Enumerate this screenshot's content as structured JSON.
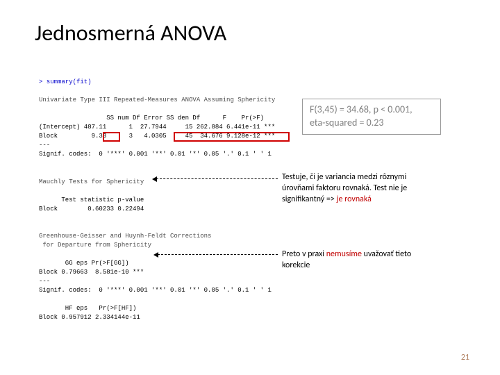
{
  "title": "Jednosmerná ANOVA",
  "code": {
    "prompt": "> summary(fit)",
    "line1": "Univariate Type III Repeated-Measures ANOVA Assuming Sphericity",
    "header1": "                  SS num Df Error SS den Df      F    Pr(>F)",
    "row_intercept": "(Intercept) 487.11      1  27.7944     15 262.884 6.441e-11 ***",
    "row_block": "Block         9.33      3   4.0305     45  34.676 9.128e-12 ***",
    "sep1": "---",
    "signif1": "Signif. codes:  0 '***' 0.001 '**' 0.01 '*' 0.05 '.' 0.1 ' ' 1",
    "mauchly_title": "Mauchly Tests for Sphericity",
    "mauchly_header": "      Test statistic p-value",
    "mauchly_row": "Block        0.60233 0.22494",
    "gg_title": "Greenhouse-Geisser and Huynh-Feldt Corrections",
    "gg_title2": " for Departure from Sphericity",
    "gg_header": "       GG eps Pr(>F[GG])",
    "gg_row": "Block 0.79663  8.581e-10 ***",
    "sep2": "---",
    "signif2": "Signif. codes:  0 '***' 0.001 '**' 0.01 '*' 0.05 '.' 0.1 ' ' 1",
    "hf_header": "       HF eps   Pr(>F[HF])",
    "hf_row": "Block 0.957912 2.334144e-11"
  },
  "formula": {
    "line1": "F(3,45) = 34.68, p < 0.001,",
    "line2": "eta-squared = 0.23"
  },
  "annotation1": {
    "text_a": "Testuje, či je variancia medzi rôznymi úrovňami faktoru rovnaká. Test nie je signifikantný => ",
    "text_b": "je rovnaká"
  },
  "annotation2": {
    "text_a": "Preto v praxi ",
    "text_b": "nemusíme",
    "text_c": " uvažovať tieto korekcie"
  },
  "page_number": "21",
  "colors": {
    "red_box": "#d00000",
    "prompt": "#0000cc",
    "grey_text": "#808080",
    "highlight": "#c00000",
    "page_num": "#b08060"
  }
}
